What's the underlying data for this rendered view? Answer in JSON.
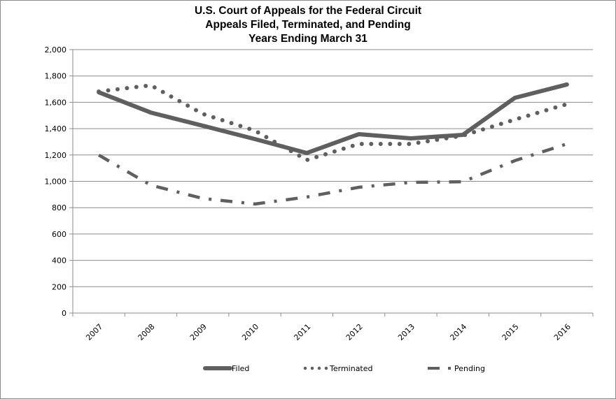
{
  "chart_data": {
    "type": "line",
    "title": [
      "U.S. Court of Appeals for the Federal Circuit",
      "Appeals Filed, Terminated, and Pending",
      "Years Ending March 31"
    ],
    "xlabel": "",
    "ylabel": "",
    "categories": [
      "2007",
      "2008",
      "2009",
      "2010",
      "2011",
      "2012",
      "2013",
      "2014",
      "2015",
      "2016"
    ],
    "ylim": [
      0,
      2000
    ],
    "yticks": [
      0,
      200,
      400,
      600,
      800,
      1000,
      1200,
      1400,
      1600,
      1800,
      2000
    ],
    "ytick_labels": [
      "0",
      "200",
      "400",
      "600",
      "800",
      "1,000",
      "1,200",
      "1,400",
      "1,600",
      "1,800",
      "2,000"
    ],
    "grid": true,
    "legend_position": "bottom",
    "series": [
      {
        "name": "Filed",
        "style": "solid",
        "color": "#5f5f5f",
        "values": [
          1676,
          1522,
          1422,
          1321,
          1215,
          1358,
          1326,
          1353,
          1634,
          1735
        ]
      },
      {
        "name": "Terminated",
        "style": "dotted",
        "color": "#5f5f5f",
        "values": [
          1682,
          1729,
          1512,
          1385,
          1162,
          1284,
          1284,
          1347,
          1469,
          1586
        ]
      },
      {
        "name": "Pending",
        "style": "dash-dot",
        "color": "#5f5f5f",
        "values": [
          1199,
          971,
          870,
          828,
          881,
          955,
          992,
          997,
          1157,
          1284
        ]
      }
    ]
  }
}
